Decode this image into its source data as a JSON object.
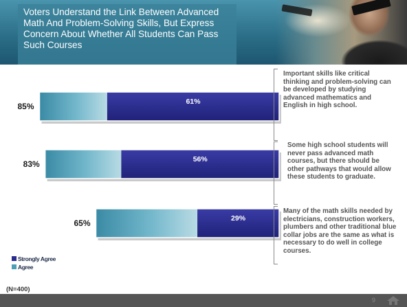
{
  "header": {
    "title": "Voters Understand the Link Between Advanced Math And Problem-Solving Skills, But  Express Concern About Whether All Students Can Pass Such Courses"
  },
  "chart_data": {
    "type": "bar",
    "orientation": "horizontal",
    "stacked": true,
    "categories": [
      "Important skills like critical thinking and problem-solving can be developed by studying advanced mathematics and English in high school.",
      "Some high school students will never pass advanced math courses, but there should be other pathways that would allow these students to graduate.",
      "Many of the math skills needed by electricians, construction workers, plumbers and other traditional blue collar jobs are the same as what is necessary to do well in college courses."
    ],
    "totals": [
      85,
      83,
      65
    ],
    "total_labels": [
      "85%",
      "83%",
      "65%"
    ],
    "series": [
      {
        "name": "Strongly Agree",
        "values": [
          61,
          56,
          29
        ],
        "labels": [
          "61%",
          "56%",
          "29%"
        ],
        "color": "#2a2c8f"
      },
      {
        "name": "Agree",
        "values": [
          24,
          27,
          36
        ],
        "color": "#4d9fb5"
      }
    ],
    "xlim": [
      0,
      85
    ],
    "legend_position": "bottom-left",
    "grid": false
  },
  "legend": [
    {
      "label": "Strongly Agree",
      "color": "#2a2c8f"
    },
    {
      "label": "Agree",
      "color": "#4d9fb5"
    }
  ],
  "sample_note": "(N=400)",
  "footer": {
    "page_number": "9"
  }
}
